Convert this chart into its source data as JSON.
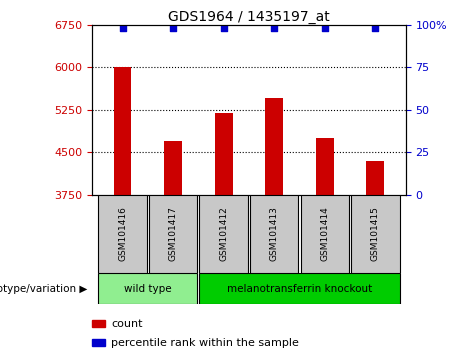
{
  "title": "GDS1964 / 1435197_at",
  "samples": [
    "GSM101416",
    "GSM101417",
    "GSM101412",
    "GSM101413",
    "GSM101414",
    "GSM101415"
  ],
  "bar_values": [
    6000,
    4700,
    5200,
    5450,
    4750,
    4350
  ],
  "percentile_values": [
    98,
    98,
    98,
    98,
    98,
    98
  ],
  "bar_color": "#CC0000",
  "percentile_color": "#0000CC",
  "ylim_left": [
    3750,
    6750
  ],
  "ylim_right": [
    0,
    100
  ],
  "yticks_left": [
    3750,
    4500,
    5250,
    6000,
    6750
  ],
  "yticks_right": [
    0,
    25,
    50,
    75,
    100
  ],
  "ytick_labels_right": [
    "0",
    "25",
    "50",
    "75",
    "100%"
  ],
  "grid_values": [
    6000,
    5250,
    4500
  ],
  "groups": [
    {
      "label": "wild type",
      "indices": [
        0,
        1
      ],
      "color": "#90EE90"
    },
    {
      "label": "melanotransferrin knockout",
      "indices": [
        2,
        3,
        4,
        5
      ],
      "color": "#00CC00"
    }
  ],
  "genotype_label": "genotype/variation",
  "legend_count_label": "count",
  "legend_percentile_label": "percentile rank within the sample",
  "bg_color": "#FFFFFF",
  "sample_box_color": "#C8C8C8",
  "left_tick_color": "#CC0000",
  "right_tick_color": "#0000CC",
  "bar_width": 0.35
}
